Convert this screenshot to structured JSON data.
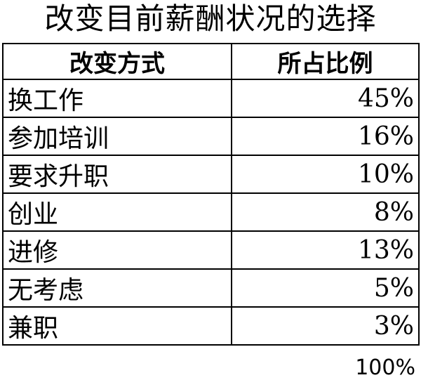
{
  "chart_data": {
    "type": "table",
    "title": "改变目前薪酬状况的选择",
    "columns": [
      "改变方式",
      "所占比例"
    ],
    "rows": [
      {
        "method": "换工作",
        "share": "45%"
      },
      {
        "method": "参加培训",
        "share": "16%"
      },
      {
        "method": "要求升职",
        "share": "10%"
      },
      {
        "method": "创业",
        "share": "8%"
      },
      {
        "method": "进修",
        "share": "13%"
      },
      {
        "method": "无考虑",
        "share": "5%"
      },
      {
        "method": "兼职",
        "share": "3%"
      }
    ],
    "total": "100%"
  }
}
